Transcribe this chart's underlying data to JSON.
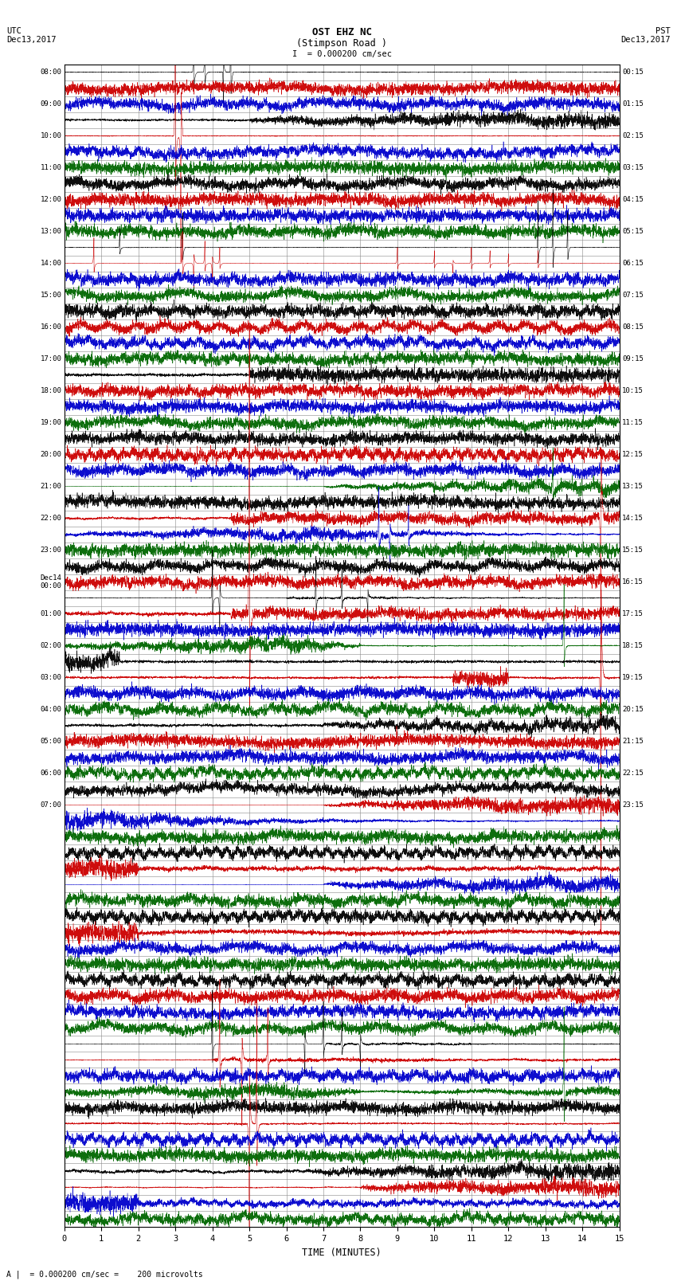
{
  "title_line1": "OST EHZ NC",
  "title_line2": "(Stimpson Road )",
  "scale_label": "I  = 0.000200 cm/sec",
  "utc_label": "UTC\nDec13,2017",
  "pst_label": "PST\nDec13,2017",
  "xlabel": "TIME (MINUTES)",
  "bottom_note": "A |  = 0.000200 cm/sec =    200 microvolts",
  "xlim": [
    0,
    15
  ],
  "xticks": [
    0,
    1,
    2,
    3,
    4,
    5,
    6,
    7,
    8,
    9,
    10,
    11,
    12,
    13,
    14,
    15
  ],
  "bg_color": "#ffffff",
  "grid_color": "#888888",
  "trace_colors": [
    "#000000",
    "#cc0000",
    "#0000cc",
    "#006600"
  ],
  "fig_width": 8.5,
  "fig_height": 16.13,
  "left_times": [
    "08:00",
    "",
    "09:00",
    "",
    "10:00",
    "",
    "11:00",
    "",
    "12:00",
    "",
    "13:00",
    "",
    "14:00",
    "",
    "15:00",
    "",
    "16:00",
    "",
    "17:00",
    "",
    "18:00",
    "",
    "19:00",
    "",
    "20:00",
    "",
    "21:00",
    "",
    "22:00",
    "",
    "23:00",
    "",
    "Dec14\n00:00",
    "",
    "01:00",
    "",
    "02:00",
    "",
    "03:00",
    "",
    "04:00",
    "",
    "05:00",
    "",
    "06:00",
    "",
    "07:00",
    ""
  ],
  "right_times": [
    "00:15",
    "",
    "01:15",
    "",
    "02:15",
    "",
    "03:15",
    "",
    "04:15",
    "",
    "05:15",
    "",
    "06:15",
    "",
    "07:15",
    "",
    "08:15",
    "",
    "09:15",
    "",
    "10:15",
    "",
    "11:15",
    "",
    "12:15",
    "",
    "13:15",
    "",
    "14:15",
    "",
    "15:15",
    "",
    "16:15",
    "",
    "17:15",
    "",
    "18:15",
    "",
    "19:15",
    "",
    "20:15",
    "",
    "21:15",
    "",
    "22:15",
    "",
    "23:15",
    ""
  ]
}
